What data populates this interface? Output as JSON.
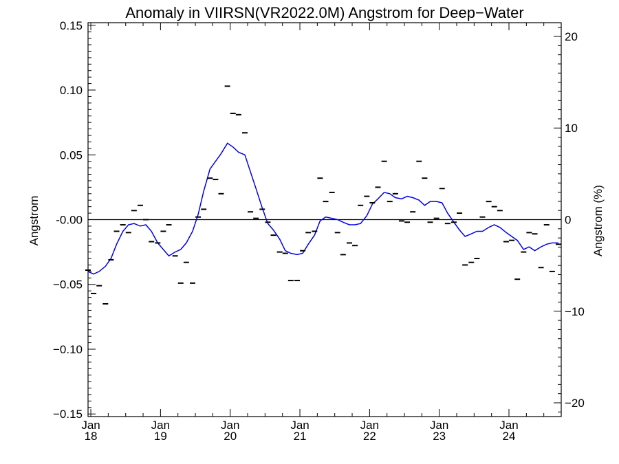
{
  "chart_data": {
    "type": "scatter",
    "title": "Anomaly in VIIRSN(VR2022.0M) Angstrom for Deep−Water",
    "ylabel": "Angstrom",
    "ylabel_right": "Angstrom (%)",
    "ylim": [
      -0.152,
      0.152
    ],
    "ylim_right": [
      -21.5,
      21.5
    ],
    "xlim": [
      2017.96,
      2024.75
    ],
    "y_ticks": [
      {
        "value": -0.15,
        "label": "−0.15"
      },
      {
        "value": -0.1,
        "label": "−0.10"
      },
      {
        "value": -0.05,
        "label": "−0.05"
      },
      {
        "value": 0.0,
        "label": "-0.00"
      },
      {
        "value": 0.05,
        "label": "0.05"
      },
      {
        "value": 0.1,
        "label": "0.10"
      },
      {
        "value": 0.15,
        "label": "0.15"
      }
    ],
    "y_ticks_right": [
      {
        "value": -20,
        "label": "−20"
      },
      {
        "value": -10,
        "label": "−10"
      },
      {
        "value": 0,
        "label": "0"
      },
      {
        "value": 10,
        "label": "10"
      },
      {
        "value": 20,
        "label": "20"
      }
    ],
    "x_ticks": [
      {
        "value": 2018.0,
        "month": "Jan",
        "year": "18"
      },
      {
        "value": 2019.0,
        "month": "Jan",
        "year": "19"
      },
      {
        "value": 2020.0,
        "month": "Jan",
        "year": "20"
      },
      {
        "value": 2021.0,
        "month": "Jan",
        "year": "21"
      },
      {
        "value": 2022.0,
        "month": "Jan",
        "year": "22"
      },
      {
        "value": 2023.0,
        "month": "Jan",
        "year": "23"
      },
      {
        "value": 2024.0,
        "month": "Jan",
        "year": "24"
      }
    ],
    "reference_line": 0.0,
    "series": [
      {
        "name": "",
        "style": "dash",
        "color": "#000000",
        "x": [
          2017.96,
          2018.04,
          2018.12,
          2018.21,
          2018.29,
          2018.37,
          2018.46,
          2018.54,
          2018.62,
          2018.71,
          2018.79,
          2018.87,
          2018.96,
          2019.04,
          2019.12,
          2019.21,
          2019.29,
          2019.37,
          2019.46,
          2019.54,
          2019.62,
          2019.71,
          2019.79,
          2019.87,
          2019.96,
          2020.04,
          2020.12,
          2020.21,
          2020.29,
          2020.37,
          2020.46,
          2020.54,
          2020.62,
          2020.71,
          2020.79,
          2020.87,
          2020.96,
          2021.04,
          2021.12,
          2021.21,
          2021.29,
          2021.37,
          2021.46,
          2021.54,
          2021.62,
          2021.71,
          2021.79,
          2021.87,
          2021.96,
          2022.04,
          2022.12,
          2022.21,
          2022.29,
          2022.37,
          2022.46,
          2022.54,
          2022.62,
          2022.71,
          2022.79,
          2022.87,
          2022.96,
          2023.04,
          2023.12,
          2023.21,
          2023.29,
          2023.37,
          2023.46,
          2023.54,
          2023.62,
          2023.71,
          2023.79,
          2023.87,
          2023.96,
          2024.04,
          2024.12,
          2024.21,
          2024.29,
          2024.37,
          2024.46,
          2024.54,
          2024.62,
          2024.71
        ],
        "values": [
          -0.039,
          -0.057,
          -0.051,
          -0.065,
          -0.031,
          -0.009,
          -0.004,
          -0.01,
          0.007,
          0.011,
          0.0,
          -0.017,
          -0.018,
          -0.009,
          -0.004,
          -0.028,
          -0.049,
          -0.033,
          -0.049,
          0.002,
          0.008,
          0.032,
          0.031,
          0.02,
          0.103,
          0.082,
          0.081,
          0.067,
          0.006,
          0.001,
          0.008,
          -0.002,
          -0.012,
          -0.025,
          -0.026,
          -0.047,
          -0.047,
          -0.024,
          -0.01,
          -0.009,
          0.032,
          0.014,
          0.021,
          -0.01,
          -0.027,
          -0.018,
          -0.02,
          0.011,
          0.018,
          0.013,
          0.025,
          0.045,
          0.014,
          0.02,
          -0.001,
          -0.002,
          0.006,
          0.045,
          0.032,
          -0.002,
          0.001,
          0.024,
          -0.003,
          -0.002,
          0.005,
          -0.035,
          -0.033,
          -0.03,
          0.002,
          0.014,
          0.01,
          0.007,
          -0.017,
          -0.016,
          -0.046,
          -0.025,
          -0.01,
          -0.011,
          -0.037,
          -0.004,
          -0.04,
          -0.019
        ]
      },
      {
        "name": "",
        "style": "line",
        "color": "#0000ee",
        "x": [
          2017.96,
          2018.04,
          2018.12,
          2018.21,
          2018.29,
          2018.37,
          2018.46,
          2018.54,
          2018.62,
          2018.71,
          2018.79,
          2018.87,
          2018.96,
          2019.04,
          2019.12,
          2019.21,
          2019.29,
          2019.37,
          2019.46,
          2019.54,
          2019.62,
          2019.71,
          2019.79,
          2019.87,
          2019.96,
          2020.04,
          2020.12,
          2020.21,
          2020.29,
          2020.37,
          2020.46,
          2020.54,
          2020.62,
          2020.71,
          2020.79,
          2020.87,
          2020.96,
          2021.04,
          2021.12,
          2021.21,
          2021.29,
          2021.37,
          2021.46,
          2021.54,
          2021.62,
          2021.71,
          2021.79,
          2021.87,
          2021.96,
          2022.04,
          2022.12,
          2022.21,
          2022.29,
          2022.37,
          2022.46,
          2022.54,
          2022.62,
          2022.71,
          2022.79,
          2022.87,
          2022.96,
          2023.04,
          2023.12,
          2023.21,
          2023.29,
          2023.37,
          2023.46,
          2023.54,
          2023.62,
          2023.71,
          2023.79,
          2023.87,
          2023.96,
          2024.04,
          2024.12,
          2024.21,
          2024.29,
          2024.37,
          2024.46,
          2024.54,
          2024.62,
          2024.71
        ],
        "values": [
          -0.04,
          -0.042,
          -0.04,
          -0.036,
          -0.03,
          -0.019,
          -0.009,
          -0.004,
          -0.003,
          -0.005,
          -0.004,
          -0.009,
          -0.018,
          -0.023,
          -0.028,
          -0.025,
          -0.023,
          -0.018,
          -0.009,
          0.004,
          0.022,
          0.039,
          0.045,
          0.051,
          0.059,
          0.056,
          0.052,
          0.05,
          0.037,
          0.024,
          0.009,
          -0.003,
          -0.008,
          -0.015,
          -0.024,
          -0.026,
          -0.027,
          -0.026,
          -0.019,
          -0.012,
          -0.001,
          0.002,
          0.001,
          0.0,
          -0.002,
          -0.004,
          -0.004,
          -0.003,
          0.003,
          0.012,
          0.016,
          0.021,
          0.02,
          0.017,
          0.016,
          0.018,
          0.017,
          0.015,
          0.011,
          0.014,
          0.014,
          0.013,
          0.005,
          -0.002,
          -0.008,
          -0.013,
          -0.011,
          -0.009,
          -0.009,
          -0.006,
          -0.004,
          -0.006,
          -0.01,
          -0.013,
          -0.016,
          -0.023,
          -0.021,
          -0.024,
          -0.021,
          -0.019,
          -0.018,
          -0.018
        ]
      }
    ]
  }
}
